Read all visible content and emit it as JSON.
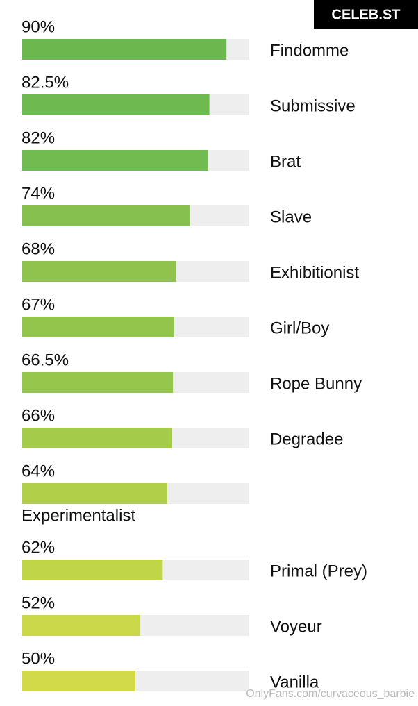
{
  "chart_data": {
    "type": "bar",
    "categories": [
      "Findomme",
      "Submissive",
      "Brat",
      "Slave",
      "Exhibitionist",
      "Girl/Boy",
      "Rope Bunny",
      "Degradee",
      "Experimentalist",
      "Primal (Prey)",
      "Voyeur",
      "Vanilla"
    ],
    "values": [
      90,
      82.5,
      82,
      74,
      68,
      67,
      66.5,
      66,
      64,
      62,
      52,
      50
    ],
    "value_labels": [
      "90%",
      "82.5%",
      "82%",
      "74%",
      "68%",
      "67%",
      "66.5%",
      "66%",
      "64%",
      "62%",
      "52%",
      "50%"
    ],
    "colors": [
      "#6cb84f",
      "#6fba50",
      "#72bb50",
      "#86c04e",
      "#8fc34d",
      "#93c54c",
      "#97c64c",
      "#a5cb4a",
      "#b1cf49",
      "#c0d548",
      "#cbd84a",
      "#d2da4a"
    ],
    "track_color": "#eeeeee",
    "xlim": [
      0,
      100
    ]
  },
  "watermarks": {
    "badge": "CELEB.ST",
    "footer": "OnlyFans.com/curvaceous_barbie"
  }
}
